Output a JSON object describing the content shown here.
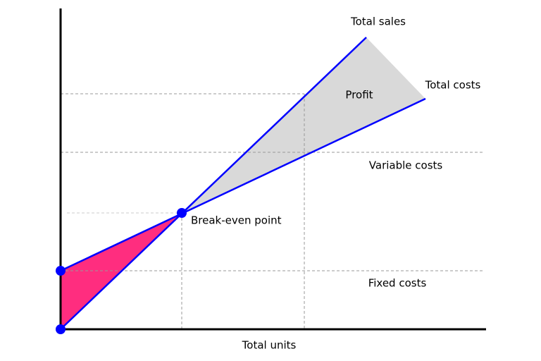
{
  "labels": {
    "total_sales": "Total sales",
    "total_costs": "Total costs",
    "profit": "Profit",
    "variable_costs": "Variable costs",
    "break_even": "Break-even point",
    "fixed_costs": "Fixed costs",
    "x_axis": "Total units"
  }
}
